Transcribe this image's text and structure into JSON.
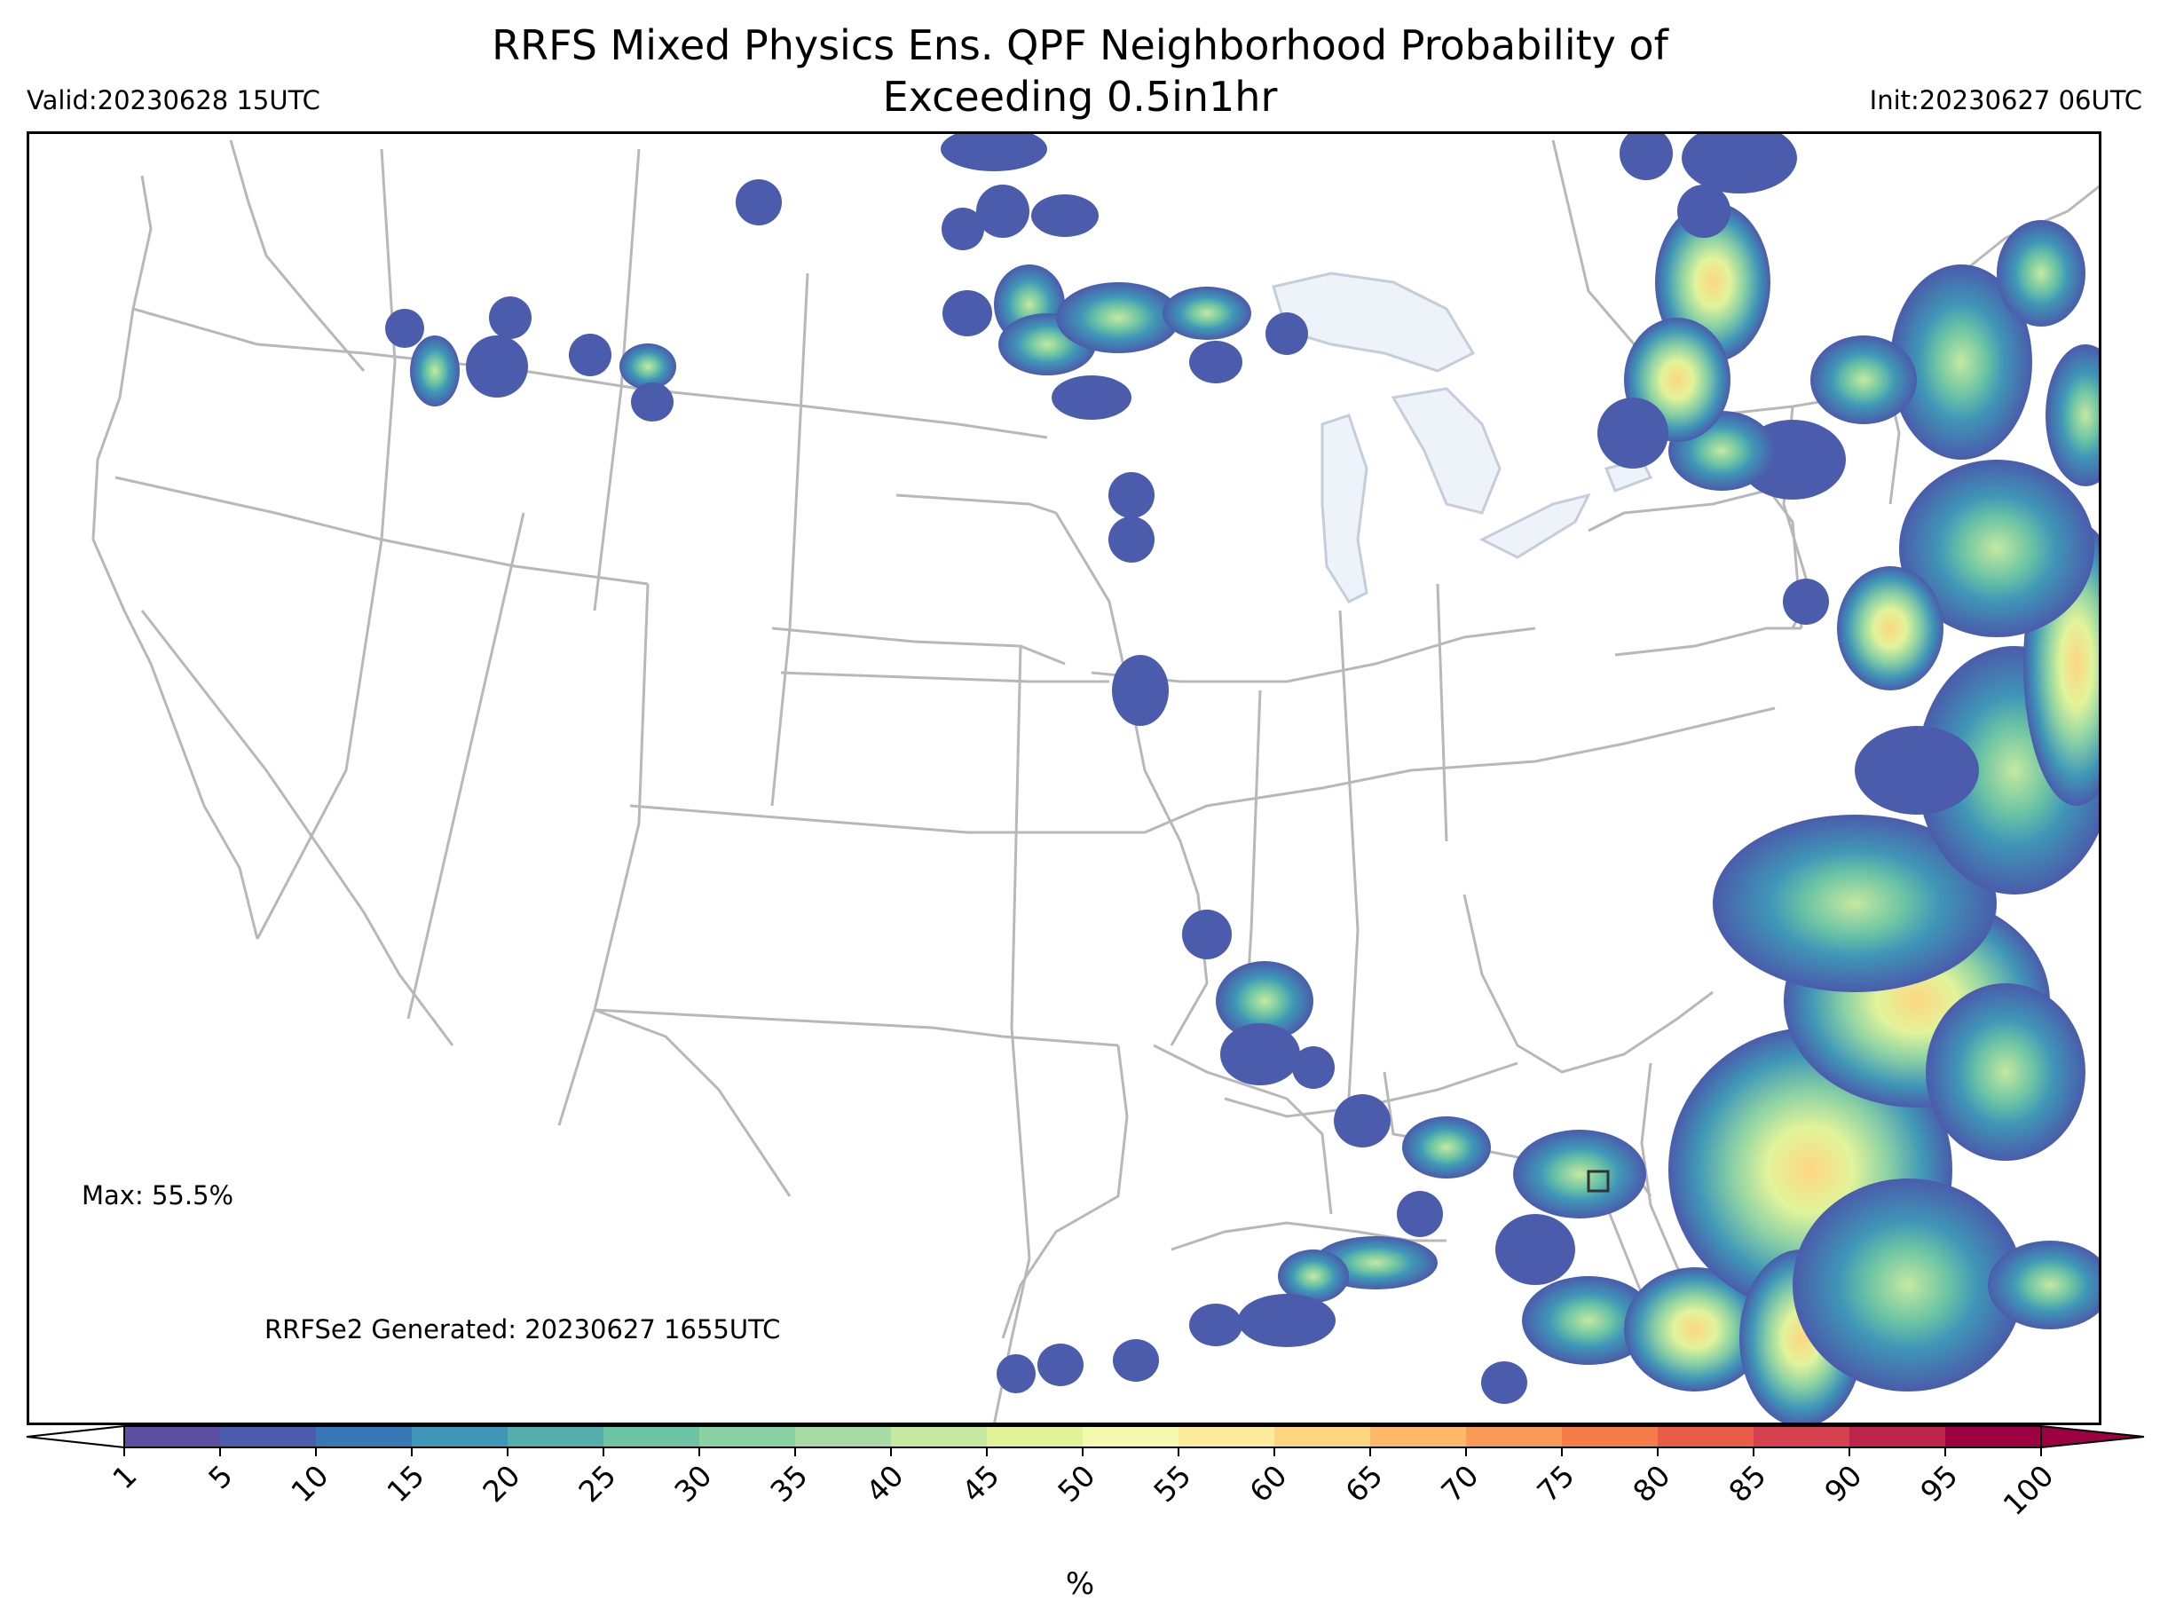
{
  "title": "RRFS Mixed Physics Ens. QPF Neighborhood Probability of Exceeding 0.5in1hr",
  "title_lines": [
    "RRFS Mixed Physics Ens. QPF Neighborhood Probability of",
    "Exceeding 0.5in1hr"
  ],
  "valid_label": "Valid:20230628 15UTC",
  "init_label": "Init:20230627 06UTC",
  "max_label": "Max: 55.5%",
  "generated_label": "RRFSe2 Generated: 20230627 1655UTC",
  "colorbar": {
    "ticks": [
      "1",
      "5",
      "10",
      "15",
      "20",
      "25",
      "30",
      "35",
      "40",
      "45",
      "50",
      "55",
      "60",
      "65",
      "70",
      "75",
      "80",
      "85",
      "90",
      "95",
      "100"
    ],
    "colors": [
      "#5e4fa2",
      "#4a5cab",
      "#3978b7",
      "#3f96b7",
      "#54aead",
      "#6cc4a4",
      "#8ad1a4",
      "#a7dca4",
      "#c5e9a0",
      "#e1f49a",
      "#f3faad",
      "#fdeb9d",
      "#fed682",
      "#fdb968",
      "#fa9a57",
      "#f67c4a",
      "#e95c47",
      "#d7404e",
      "#be254a",
      "#9e0142"
    ],
    "units": "%"
  },
  "map": {
    "extent": "CONUS",
    "great_lakes_color": "#eef3fa",
    "border_color": "#b8b8b8"
  }
}
